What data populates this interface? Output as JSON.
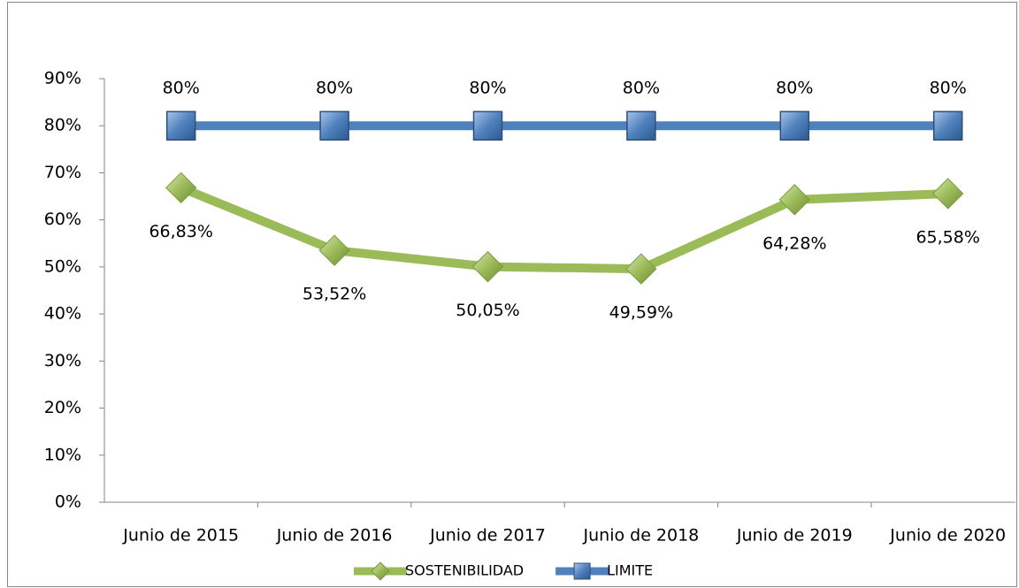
{
  "chart_data": {
    "type": "line",
    "categories": [
      "Junio de 2015",
      "Junio de 2016",
      "Junio de 2017",
      "Junio de 2018",
      "Junio de 2019",
      "Junio de 2020"
    ],
    "series": [
      {
        "name": "SOSTENIBILIDAD",
        "color": "#9bbb59",
        "marker": "diamond",
        "label_position": "below",
        "values": [
          66.83,
          53.52,
          50.05,
          49.59,
          64.28,
          65.58
        ],
        "value_labels": [
          "66,83%",
          "53,52%",
          "50,05%",
          "49,59%",
          "64,28%",
          "65,58%"
        ]
      },
      {
        "name": "LIMITE",
        "color": "#4f81bd",
        "marker": "square",
        "label_position": "above",
        "values": [
          80,
          80,
          80,
          80,
          80,
          80
        ],
        "value_labels": [
          "80%",
          "80%",
          "80%",
          "80%",
          "80%",
          "80%"
        ]
      }
    ],
    "ylim": [
      0,
      90
    ],
    "yticks": [
      {
        "value": 0,
        "label": "0%"
      },
      {
        "value": 10,
        "label": "10%"
      },
      {
        "value": 20,
        "label": "20%"
      },
      {
        "value": 30,
        "label": "30%"
      },
      {
        "value": 40,
        "label": "40%"
      },
      {
        "value": 50,
        "label": "50%"
      },
      {
        "value": 60,
        "label": "60%"
      },
      {
        "value": 70,
        "label": "70%"
      },
      {
        "value": 80,
        "label": "80%"
      },
      {
        "value": 90,
        "label": "90%"
      }
    ],
    "grid": false,
    "legend": "bottom"
  }
}
